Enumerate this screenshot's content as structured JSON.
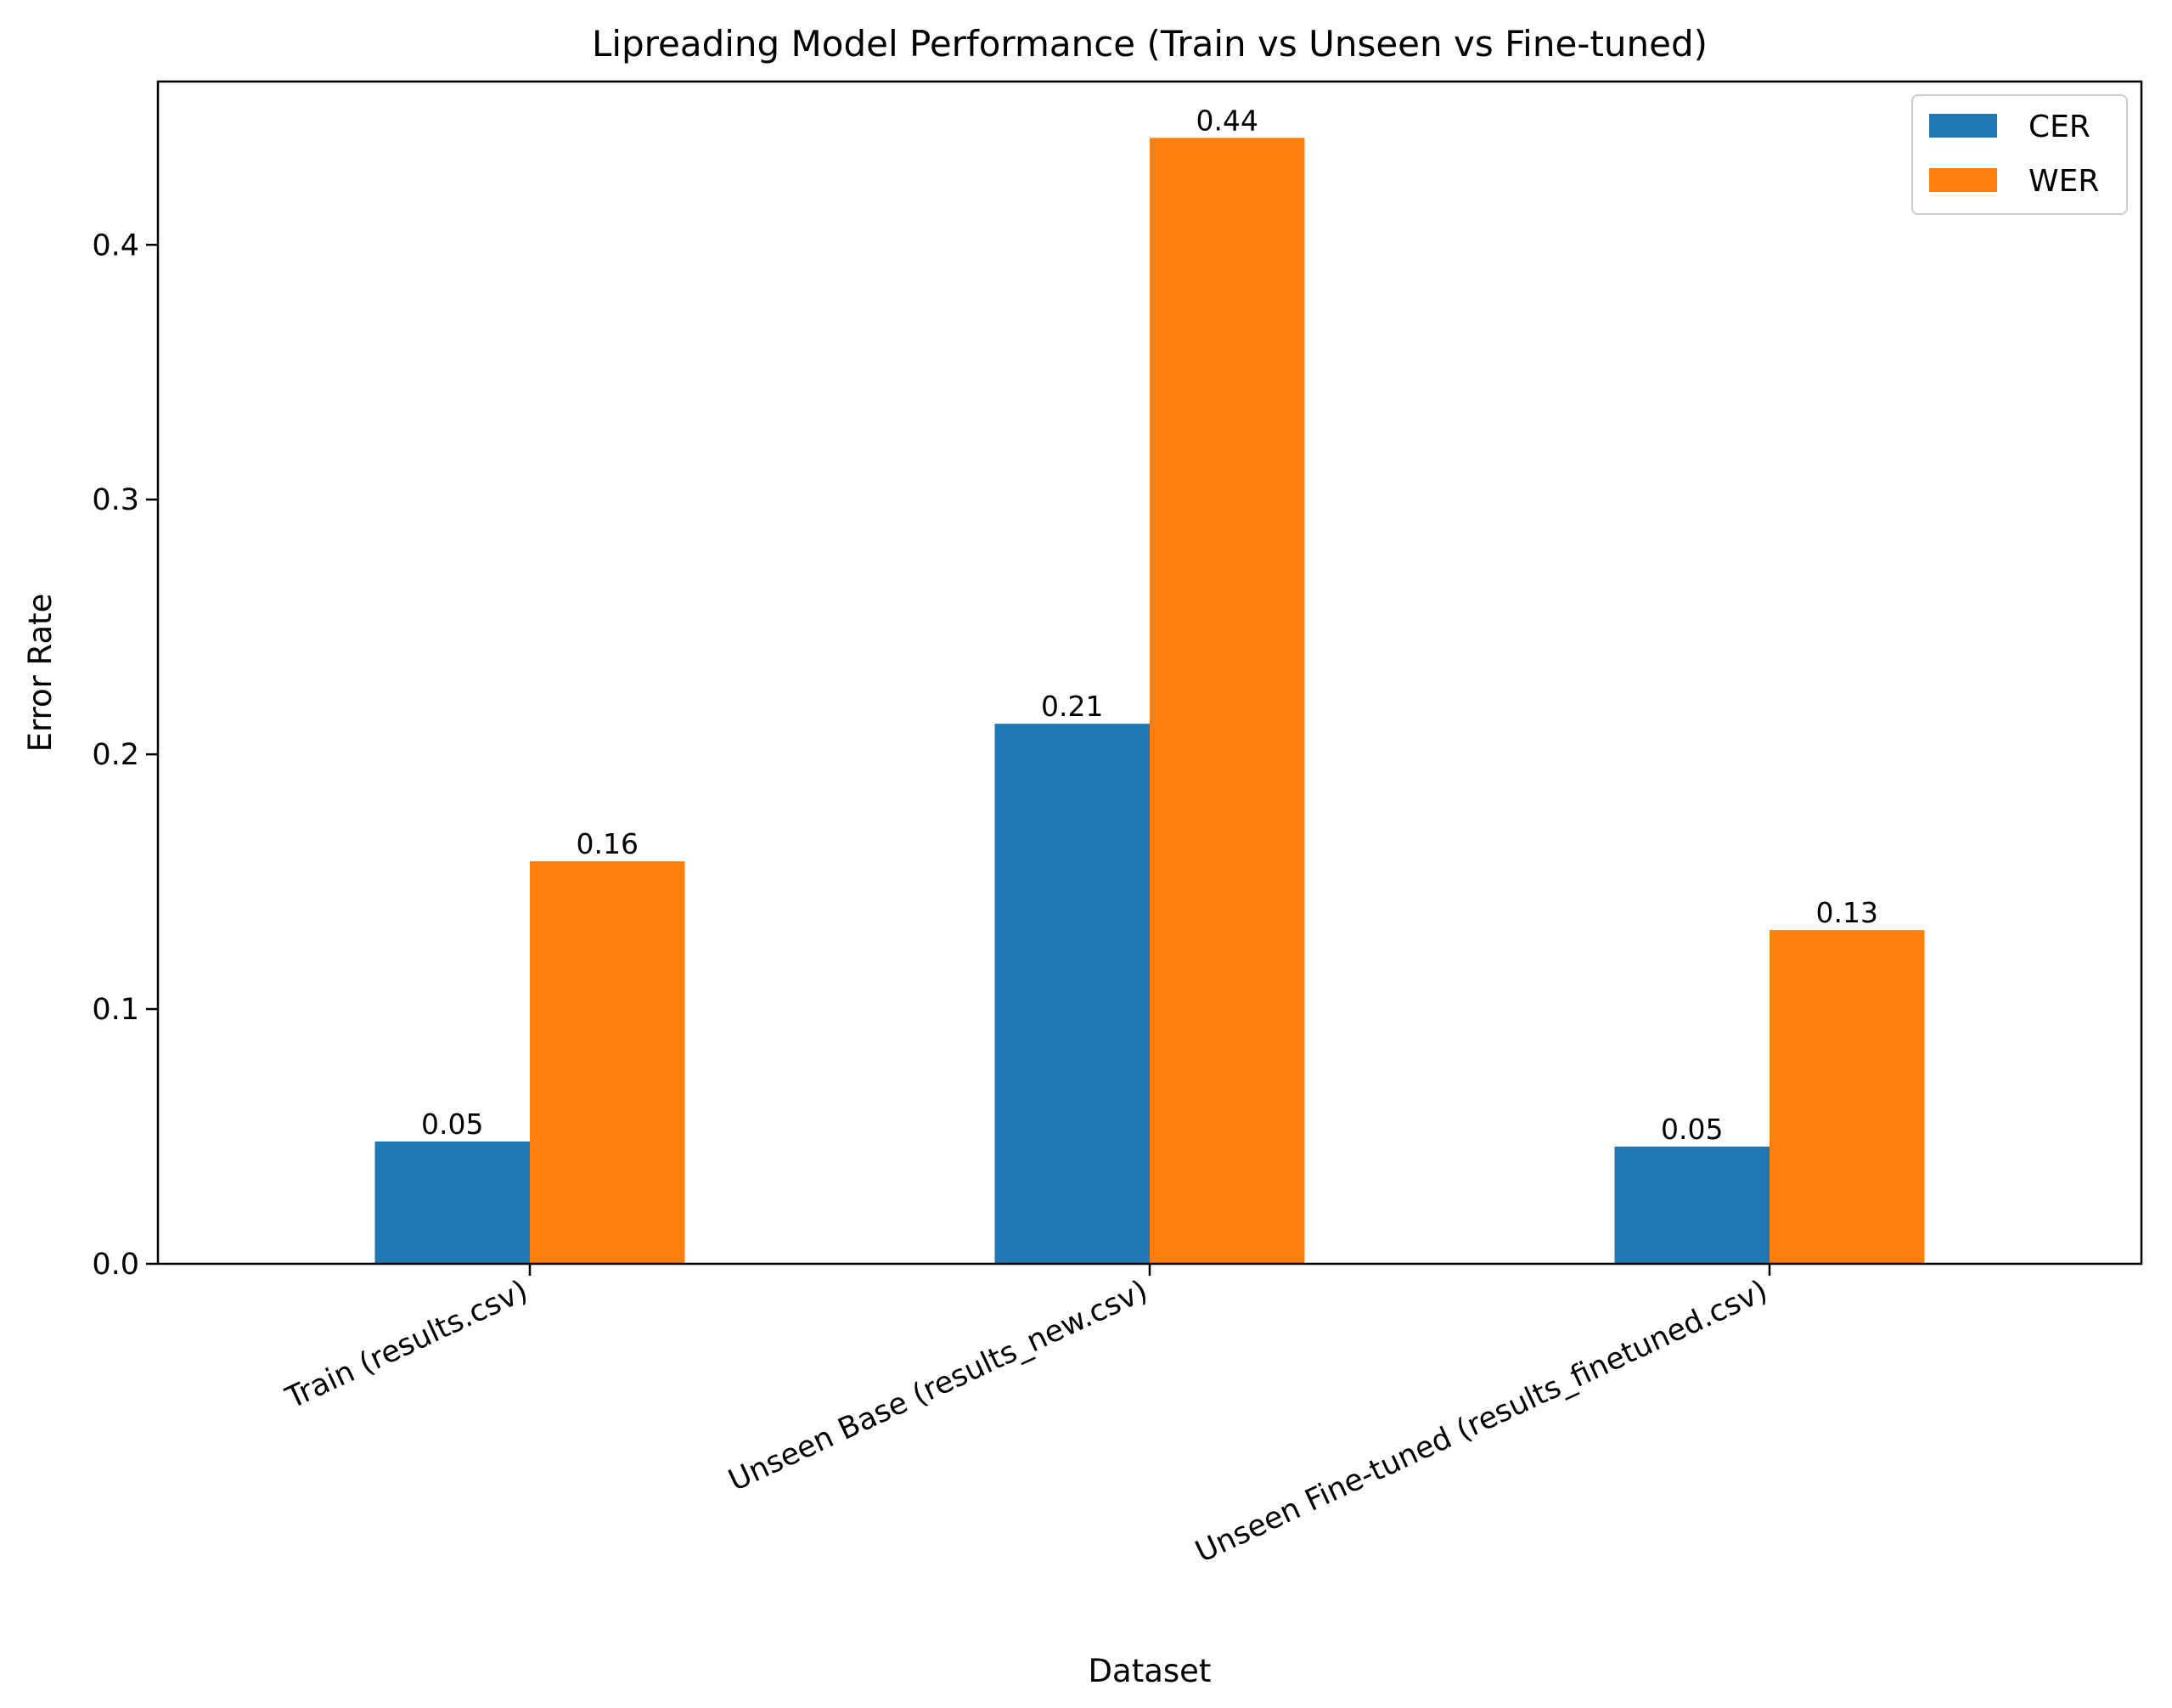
{
  "chart_data": {
    "type": "bar",
    "title": "Lipreading Model Performance (Train vs Unseen vs Fine-tuned)",
    "xlabel": "Dataset",
    "ylabel": "Error Rate",
    "categories": [
      "Train (results.csv)",
      "Unseen Base (results_new.csv)",
      "Unseen Fine-tuned (results_finetuned.csv)"
    ],
    "series": [
      {
        "name": "CER",
        "color": "#1f77b4",
        "values": [
          0.048,
          0.212,
          0.046
        ],
        "labels": [
          "0.05",
          "0.21",
          "0.05"
        ]
      },
      {
        "name": "WER",
        "color": "#ff7f0e",
        "values": [
          0.158,
          0.442,
          0.131
        ],
        "labels": [
          "0.16",
          "0.44",
          "0.13"
        ]
      }
    ],
    "ylim": [
      0,
      0.4641
    ],
    "yticks": [
      0.0,
      0.1,
      0.2,
      0.3,
      0.4
    ],
    "ytick_labels": [
      "0.0",
      "0.1",
      "0.2",
      "0.3",
      "0.4"
    ],
    "x_tick_rotation_deg": 25,
    "grid": false,
    "legend_position": "top-right"
  }
}
